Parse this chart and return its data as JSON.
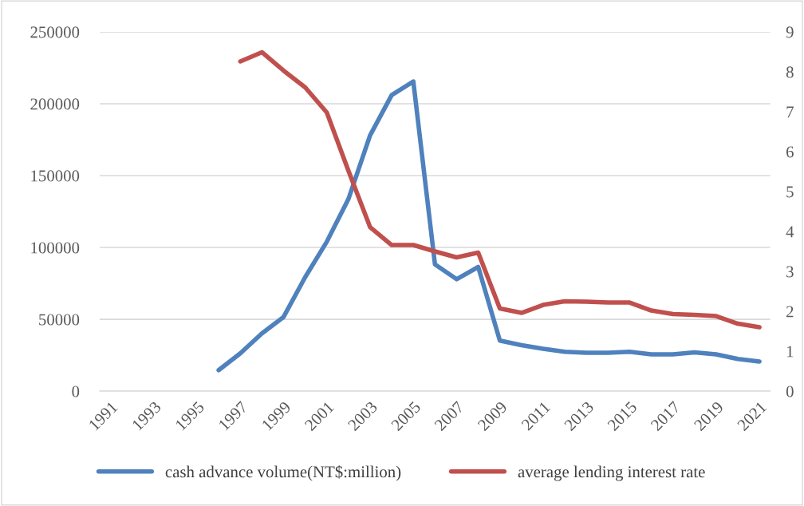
{
  "chart_data": {
    "type": "line",
    "categories": [
      "1991",
      null,
      "1993",
      null,
      "1995",
      null,
      "1997",
      null,
      "1999",
      null,
      "2001",
      null,
      "2003",
      null,
      "2005",
      null,
      "2007",
      null,
      "2009",
      null,
      "2011",
      null,
      "2013",
      null,
      "2015",
      null,
      "2017",
      null,
      "2019",
      null,
      "2021"
    ],
    "series": [
      {
        "name": "cash advance volume(NT$:million)",
        "color": "#4f81bd",
        "values": [
          null,
          null,
          null,
          null,
          null,
          14600,
          26300,
          40200,
          51600,
          79300,
          104000,
          133700,
          178000,
          206000,
          215500,
          88200,
          77900,
          86400,
          35200,
          32000,
          29500,
          27400,
          26700,
          26700,
          27400,
          25600,
          25600,
          27000,
          25600,
          22400,
          20600
        ]
      },
      {
        "name": "average lending interest rate",
        "color": "#c0504d",
        "axis": "y2",
        "values": [
          null,
          null,
          null,
          null,
          null,
          null,
          8.26,
          8.49,
          8.03,
          7.61,
          6.98,
          5.52,
          4.11,
          3.66,
          3.66,
          3.5,
          3.35,
          3.47,
          2.07,
          1.96,
          2.16,
          2.25,
          2.24,
          2.22,
          2.22,
          2.02,
          1.93,
          1.91,
          1.88,
          1.69,
          1.6
        ]
      }
    ],
    "ylim": [
      0,
      250000
    ],
    "yticks": [
      0,
      50000,
      100000,
      150000,
      200000,
      250000
    ],
    "y2lim": [
      0,
      9
    ],
    "y2ticks": [
      0,
      1,
      2,
      3,
      4,
      5,
      6,
      7,
      8,
      9
    ],
    "grid": "y",
    "legend": "bottom",
    "marker": "none",
    "line_style": "solid"
  }
}
